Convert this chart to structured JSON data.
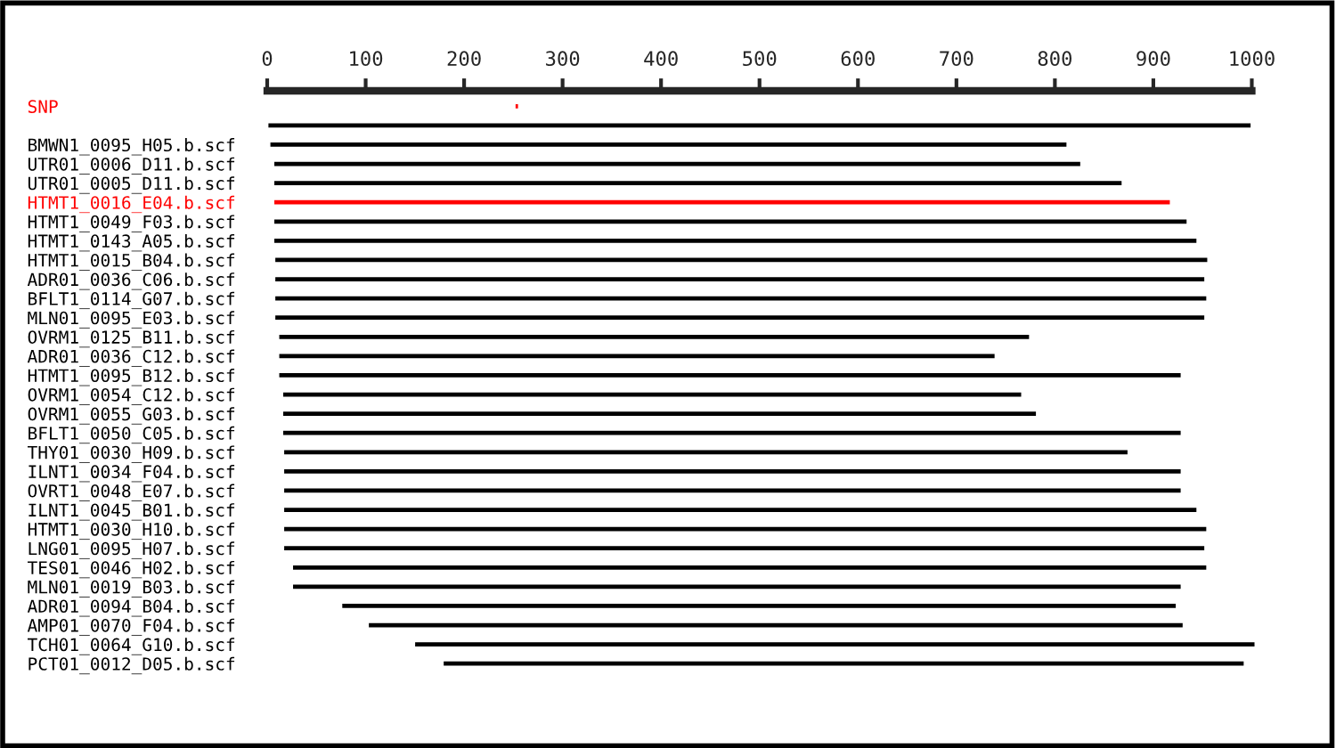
{
  "chart_data": {
    "type": "bar",
    "orientation": "horizontal",
    "grid": false,
    "categories": [
      "SNP",
      null,
      "BMWN1_0095_H05.b.scf",
      "UTR01_0006_D11.b.scf",
      "UTR01_0005_D11.b.scf",
      "HTMT1_0016_E04.b.scf",
      "HTMT1_0049_F03.b.scf",
      "HTMT1_0143_A05.b.scf",
      "HTMT1_0015_B04.b.scf",
      "ADR01_0036_C06.b.scf",
      "BFLT1_0114_G07.b.scf",
      "MLN01_0095_E03.b.scf",
      "OVRM1_0125_B11.b.scf",
      "ADR01_0036_C12.b.scf",
      "HTMT1_0095_B12.b.scf",
      "OVRM1_0054_C12.b.scf",
      "OVRM1_0055_G03.b.scf",
      "BFLT1_0050_C05.b.scf",
      "THY01_0030_H09.b.scf",
      "ILNT1_0034_F04.b.scf",
      "OVRT1_0048_E07.b.scf",
      "ILNT1_0045_B01.b.scf",
      "HTMT1_0030_H10.b.scf",
      "LNG01_0095_H07.b.scf",
      "TES01_0046_H02.b.scf",
      "MLN01_0019_B03.b.scf",
      "ADR01_0094_B04.b.scf",
      "AMP01_0070_F04.b.scf",
      "TCH01_0064_G10.b.scf",
      "PCT01_0012_D05.b.scf"
    ],
    "base": [
      251,
      0,
      2,
      6,
      6,
      6,
      6,
      6,
      7,
      7,
      7,
      7,
      11,
      11,
      11,
      15,
      15,
      15,
      16,
      16,
      16,
      16,
      16,
      16,
      25,
      25,
      75,
      102,
      149,
      178
    ],
    "values": [
      5,
      1000,
      811,
      821,
      863,
      912,
      929,
      939,
      949,
      946,
      948,
      946,
      764,
      729,
      918,
      752,
      767,
      914,
      859,
      913,
      913,
      929,
      939,
      937,
      930,
      904,
      849,
      829,
      855,
      815
    ],
    "colors": [
      "#ff0000",
      "#000000",
      "#000000",
      "#000000",
      "#000000",
      "#ff0000",
      "#000000",
      "#000000",
      "#000000",
      "#000000",
      "#000000",
      "#000000",
      "#000000",
      "#000000",
      "#000000",
      "#000000",
      "#000000",
      "#000000",
      "#000000",
      "#000000",
      "#000000",
      "#000000",
      "#000000",
      "#000000",
      "#000000",
      "#000000",
      "#000000",
      "#000000",
      "#000000",
      "#000000"
    ],
    "xlim": [
      0,
      1005
    ],
    "xticks": [
      0,
      100,
      200,
      300,
      400,
      500,
      600,
      700,
      800,
      900,
      1000
    ]
  }
}
